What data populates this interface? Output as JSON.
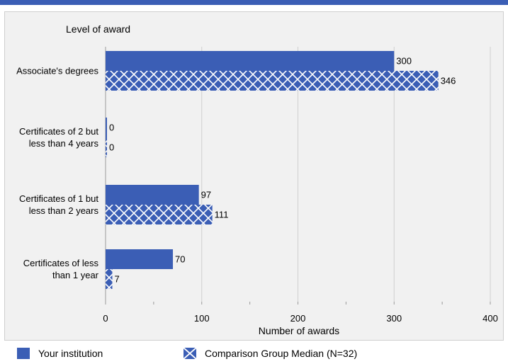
{
  "chart_data": {
    "type": "bar",
    "orientation": "horizontal",
    "ylabel": "Level of award",
    "xlabel": "Number of awards",
    "categories": [
      [
        "Associate's degrees"
      ],
      [
        "Certificates of 2 but",
        "less than 4 years"
      ],
      [
        "Certificates of 1 but",
        "less than 2 years"
      ],
      [
        "Certificates of less",
        "than 1 year"
      ]
    ],
    "series": [
      {
        "name": "Your institution",
        "values": [
          300,
          0,
          97,
          70
        ],
        "color": "#3b5eb5",
        "pattern": "solid"
      },
      {
        "name": "Comparison Group Median (N=32)",
        "values": [
          346,
          0,
          111,
          7
        ],
        "color": "#3b5eb5",
        "pattern": "crosshatch"
      }
    ],
    "xlim": [
      0,
      400
    ],
    "xticks": [
      0,
      100,
      200,
      300,
      400
    ],
    "grid": true,
    "legend": "bottom"
  }
}
